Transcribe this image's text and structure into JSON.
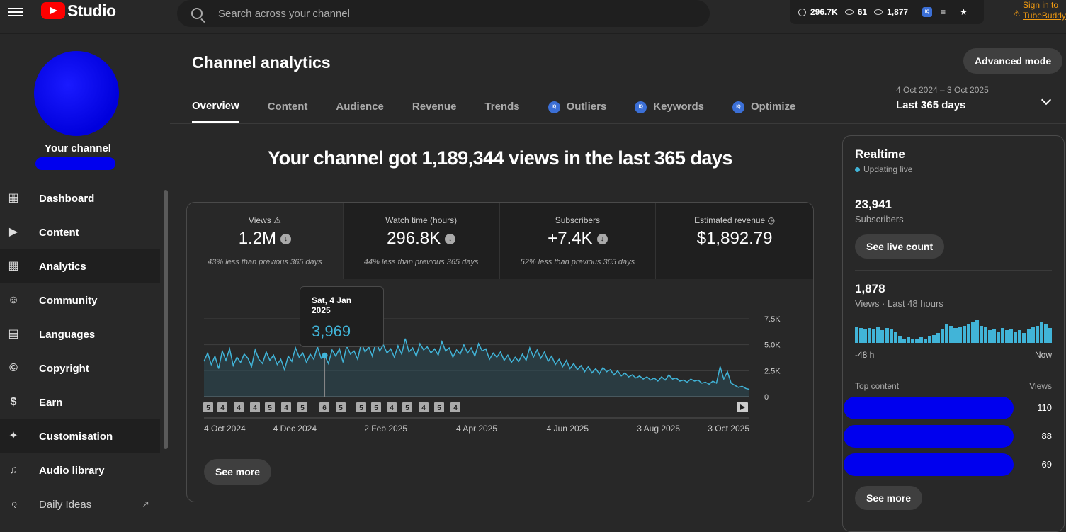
{
  "topbar": {
    "logo_text": "Studio",
    "search_placeholder": "Search across your channel",
    "stats": {
      "watch": "296.7K",
      "views_a": "61",
      "views_b": "1,877"
    },
    "tubebuddy_link": "Sign in to TubeBuddy"
  },
  "sidebar": {
    "channel_label": "Your channel",
    "items": [
      {
        "label": "Dashboard",
        "icon": "dashboard-icon"
      },
      {
        "label": "Content",
        "icon": "content-icon"
      },
      {
        "label": "Analytics",
        "icon": "analytics-icon"
      },
      {
        "label": "Community",
        "icon": "community-icon"
      },
      {
        "label": "Languages",
        "icon": "languages-icon"
      },
      {
        "label": "Copyright",
        "icon": "copyright-icon"
      },
      {
        "label": "Earn",
        "icon": "dollar-icon"
      },
      {
        "label": "Customisation",
        "icon": "wand-icon"
      },
      {
        "label": "Audio library",
        "icon": "audio-library-icon"
      },
      {
        "label": "Daily Ideas",
        "icon": "iq-icon"
      }
    ]
  },
  "main": {
    "title": "Channel analytics",
    "advanced_mode": "Advanced mode",
    "tabs": [
      "Overview",
      "Content",
      "Audience",
      "Revenue",
      "Trends",
      "Outliers",
      "Keywords",
      "Optimize"
    ],
    "date_range": "4 Oct 2024 – 3 Oct 2025",
    "date_label": "Last 365 days",
    "headline": "Your channel got 1,189,344 views in the last 365 days",
    "metrics": [
      {
        "label": "Views",
        "value": "1.2M",
        "sub": "43% less than previous 365 days"
      },
      {
        "label": "Watch time (hours)",
        "value": "296.8K",
        "sub": "44% less than previous 365 days"
      },
      {
        "label": "Subscribers",
        "value": "+7.4K",
        "sub": "52% less than previous 365 days"
      },
      {
        "label": "Estimated revenue",
        "value": "$1,892.79",
        "sub": ""
      }
    ],
    "tooltip": {
      "date": "Sat, 4 Jan 2025",
      "value": "3,969"
    },
    "see_more": "See more"
  },
  "chart_data": {
    "type": "area",
    "x_labels": [
      "4 Oct 2024",
      "4 Dec 2024",
      "2 Feb 2025",
      "4 Apr 2025",
      "4 Jun 2025",
      "3 Aug 2025",
      "3 Oct 2025"
    ],
    "y_ticks": [
      "7.5K",
      "5.0K",
      "2.5K",
      "0"
    ],
    "ylim": [
      0,
      7500
    ],
    "series": [
      {
        "values": [
          3400,
          4200,
          3100,
          3900,
          2700,
          4400,
          3500,
          4600,
          3000,
          3800,
          3300,
          4100,
          3700,
          2900,
          4500,
          3600,
          3200,
          4300,
          3500,
          4000,
          3100,
          3600,
          2600,
          3900,
          3400,
          4700,
          3800,
          4200,
          3300,
          4100,
          3600,
          4800,
          3700,
          3969,
          3200,
          4500,
          3900,
          4600,
          3300,
          4900,
          4100,
          4400,
          3600,
          5200,
          4300,
          4800,
          3900,
          5300,
          4400,
          5000,
          4200,
          4600,
          3800,
          4900,
          4100,
          5600,
          4300,
          4700,
          3900,
          5100,
          4500,
          4800,
          4200,
          4600,
          4000,
          5300,
          4400,
          4700,
          3800,
          4500,
          4100,
          5000,
          4200,
          4700,
          3900,
          5100,
          4400,
          4600,
          3600,
          4200,
          3800,
          4300,
          3500,
          4000,
          3300,
          3800,
          3400,
          4100,
          3500,
          4700,
          3800,
          4500,
          3700,
          4300,
          3400,
          3900,
          3100,
          3600,
          2900,
          3500,
          2700,
          3200,
          2600,
          3000,
          2400,
          2900,
          2300,
          2700,
          2200,
          2800,
          2400,
          2600,
          2100,
          2500,
          2000,
          2300,
          1900,
          2100,
          1800,
          2000,
          1700,
          1900,
          1600,
          1800,
          1500,
          1900,
          1600,
          2100,
          1700,
          1800,
          1500,
          1600,
          1400,
          1700,
          1500,
          1600,
          1300,
          1400,
          1200,
          1500,
          1300,
          2900,
          1700,
          2400,
          1300,
          1100,
          900,
          1000,
          800,
          700
        ]
      }
    ]
  },
  "realtime": {
    "title": "Realtime",
    "live": "Updating live",
    "subscribers_value": "23,941",
    "subscribers_label": "Subscribers",
    "see_live": "See live count",
    "views_value": "1,878",
    "views_label": "Views · Last 48 hours",
    "hourly_views": [
      14,
      13,
      12,
      13,
      12,
      14,
      11,
      13,
      12,
      10,
      6,
      4,
      5,
      3,
      4,
      5,
      4,
      6,
      7,
      9,
      12,
      16,
      15,
      13,
      14,
      15,
      16,
      18,
      20,
      15,
      14,
      11,
      12,
      10,
      13,
      11,
      12,
      10,
      11,
      9,
      12,
      14,
      15,
      18,
      16,
      13
    ],
    "axis_start": "-48 h",
    "axis_end": "Now",
    "top_content": "Top content",
    "views_col": "Views",
    "top_values": [
      "110",
      "88",
      "69"
    ],
    "see_more": "See more"
  }
}
